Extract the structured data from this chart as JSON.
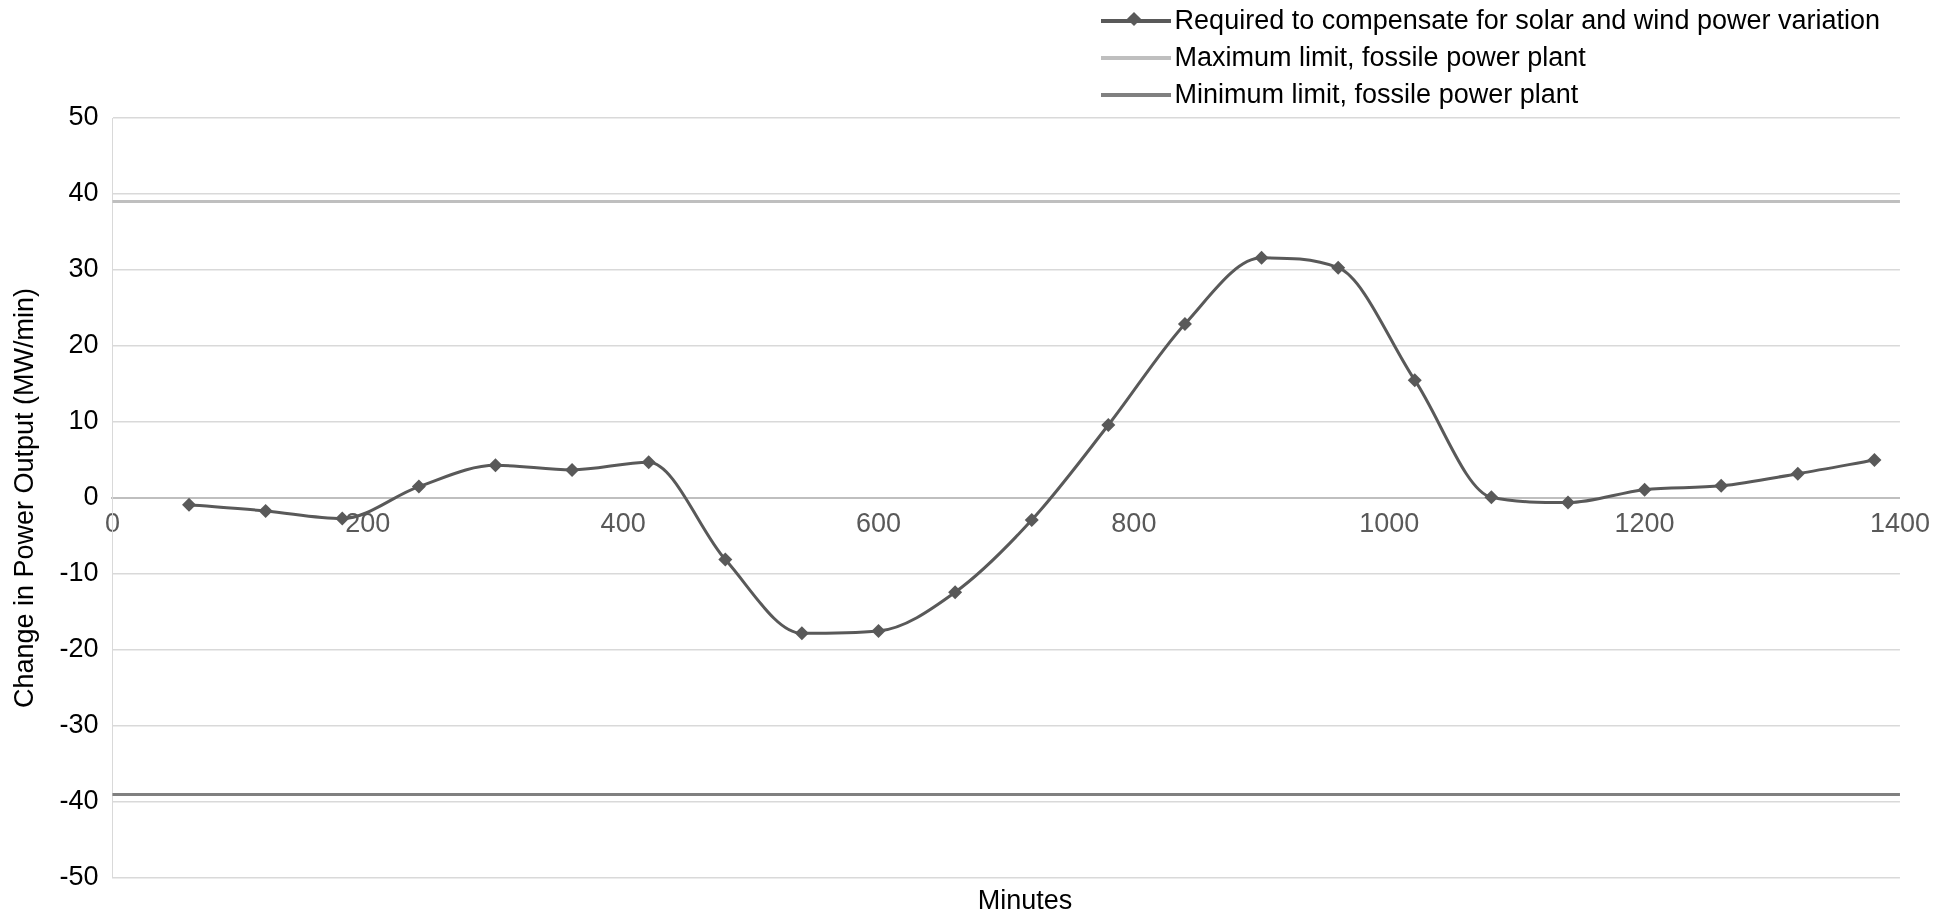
{
  "chart_data": {
    "type": "line",
    "xlabel": "Minutes",
    "ylabel": "Change in Power Output (MW/min)",
    "x": [
      60,
      120,
      180,
      240,
      300,
      360,
      420,
      480,
      540,
      600,
      660,
      720,
      780,
      840,
      900,
      960,
      1020,
      1080,
      1140,
      1200,
      1260,
      1320,
      1380
    ],
    "series": [
      {
        "name": "Required to compensate for solar and wind power variation",
        "color": "#595959",
        "marker": "diamond",
        "values": [
          -0.9,
          -1.7,
          -2.7,
          1.5,
          4.3,
          3.7,
          4.7,
          -8.1,
          -17.8,
          -17.5,
          -12.4,
          -2.9,
          9.6,
          22.9,
          31.6,
          30.3,
          15.5,
          0.1,
          -0.6,
          1.1,
          1.6,
          3.2,
          5.0
        ]
      }
    ],
    "ref_lines": [
      {
        "axis": "y",
        "value": 39,
        "label": "Maximum limit, fossile power plant",
        "color": "#bfbfbf"
      },
      {
        "axis": "y",
        "value": -39,
        "label": "Minimum limit, fossile power plant",
        "color": "#808080"
      }
    ],
    "xlim": [
      0,
      1400
    ],
    "xticks": [
      0,
      200,
      400,
      600,
      800,
      1000,
      1200,
      1400
    ],
    "ylim": [
      -50,
      50
    ],
    "yticks": [
      -50,
      -40,
      -30,
      -20,
      -10,
      0,
      10,
      20,
      30,
      40,
      50
    ],
    "grid": "y",
    "legend": "top right",
    "line_style": "solid"
  }
}
